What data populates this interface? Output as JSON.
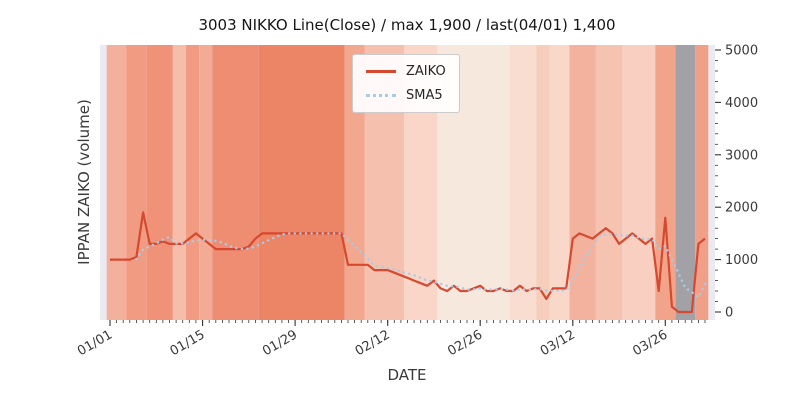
{
  "figure": {
    "title": "3003 NIKKO Line(Close) / max 1,900 / last(04/01) 1,400",
    "xlabel": "DATE",
    "ylabel": "IPPAN ZAIKO (volume)"
  },
  "legend": {
    "items": [
      {
        "label": "ZAIKO",
        "color": "#d6492f",
        "style": "solid"
      },
      {
        "label": "SMA5",
        "color": "#a9cbe8",
        "style": "dotted"
      }
    ]
  },
  "chart_data": {
    "type": "line",
    "title": "3003 NIKKO Line(Close) / max 1,900 / last(04/01) 1,400",
    "xlabel": "DATE",
    "ylabel": "IPPAN ZAIKO (volume)",
    "ylim": [
      0,
      5000
    ],
    "yticks": [
      0,
      1000,
      2000,
      3000,
      4000,
      5000
    ],
    "xtick_labels": [
      "01/01",
      "01/15",
      "01/29",
      "02/12",
      "02/26",
      "03/12",
      "03/26"
    ],
    "legend_position": "upper center",
    "grid": false,
    "plot_bg": "#eaeaf0",
    "dates": [
      "01/01",
      "01/02",
      "01/03",
      "01/04",
      "01/05",
      "01/06",
      "01/07",
      "01/08",
      "01/09",
      "01/10",
      "01/11",
      "01/12",
      "01/13",
      "01/14",
      "01/15",
      "01/16",
      "01/17",
      "01/18",
      "01/19",
      "01/20",
      "01/21",
      "01/22",
      "01/23",
      "01/24",
      "01/25",
      "01/26",
      "01/27",
      "01/28",
      "01/29",
      "01/30",
      "01/31",
      "02/01",
      "02/02",
      "02/03",
      "02/04",
      "02/05",
      "02/06",
      "02/07",
      "02/08",
      "02/09",
      "02/10",
      "02/11",
      "02/12",
      "02/13",
      "02/14",
      "02/15",
      "02/16",
      "02/17",
      "02/18",
      "02/19",
      "02/20",
      "02/21",
      "02/22",
      "02/23",
      "02/24",
      "02/25",
      "02/26",
      "02/27",
      "02/28",
      "03/01",
      "03/02",
      "03/03",
      "03/04",
      "03/05",
      "03/06",
      "03/07",
      "03/08",
      "03/09",
      "03/10",
      "03/11",
      "03/12",
      "03/13",
      "03/14",
      "03/15",
      "03/16",
      "03/17",
      "03/18",
      "03/19",
      "03/20",
      "03/21",
      "03/22",
      "03/23",
      "03/24",
      "03/25",
      "03/26",
      "03/27",
      "03/28",
      "03/29",
      "03/30",
      "03/31",
      "04/01"
    ],
    "series": [
      {
        "name": "ZAIKO",
        "color": "#d6492f",
        "style": "solid",
        "values": [
          1000,
          1000,
          1000,
          1000,
          1050,
          1900,
          1300,
          1300,
          1350,
          1300,
          1300,
          1300,
          1400,
          1500,
          1400,
          1300,
          1200,
          1200,
          1200,
          1200,
          1200,
          1250,
          1400,
          1500,
          1500,
          1500,
          1500,
          1500,
          1500,
          1500,
          1500,
          1500,
          1500,
          1500,
          1500,
          1500,
          900,
          900,
          900,
          900,
          800,
          800,
          800,
          750,
          700,
          650,
          600,
          550,
          500,
          600,
          450,
          400,
          500,
          400,
          400,
          450,
          500,
          400,
          400,
          450,
          400,
          400,
          500,
          400,
          450,
          450,
          250,
          450,
          450,
          450,
          1400,
          1500,
          1450,
          1400,
          1500,
          1600,
          1500,
          1300,
          1400,
          1500,
          1400,
          1300,
          1400,
          400,
          1800,
          100,
          0,
          0,
          0,
          1300,
          1400
        ]
      },
      {
        "name": "SMA5",
        "color": "#a9cbe8",
        "style": "dotted",
        "derived": "5-day simple moving average of ZAIKO",
        "window": 5
      }
    ],
    "background_bands": [
      {
        "from": "01/01",
        "to": "01/03",
        "color": "#f3b09c"
      },
      {
        "from": "01/04",
        "to": "01/06",
        "color": "#f09b82"
      },
      {
        "from": "01/07",
        "to": "01/10",
        "color": "#ef9278"
      },
      {
        "from": "01/11",
        "to": "01/12",
        "color": "#f6bdab"
      },
      {
        "from": "01/13",
        "to": "01/14",
        "color": "#f09b82"
      },
      {
        "from": "01/15",
        "to": "01/16",
        "color": "#f3ab95"
      },
      {
        "from": "01/17",
        "to": "01/23",
        "color": "#ee8d72"
      },
      {
        "from": "01/24",
        "to": "02/05",
        "color": "#ec8466"
      },
      {
        "from": "02/06",
        "to": "02/08",
        "color": "#f2a78f"
      },
      {
        "from": "02/09",
        "to": "02/14",
        "color": "#f6c0ae"
      },
      {
        "from": "02/15",
        "to": "02/19",
        "color": "#f9d6c7"
      },
      {
        "from": "02/20",
        "to": "03/02",
        "color": "#f7e8de"
      },
      {
        "from": "03/03",
        "to": "03/06",
        "color": "#f9ddd0"
      },
      {
        "from": "03/07",
        "to": "03/08",
        "color": "#f7cdbb"
      },
      {
        "from": "03/09",
        "to": "03/11",
        "color": "#f9d8c9"
      },
      {
        "from": "03/12",
        "to": "03/15",
        "color": "#f3b29d"
      },
      {
        "from": "03/16",
        "to": "03/19",
        "color": "#f6c3b1"
      },
      {
        "from": "03/20",
        "to": "03/24",
        "color": "#f8cfc0"
      },
      {
        "from": "03/25",
        "to": "03/27",
        "color": "#f2a48b"
      },
      {
        "from": "03/28",
        "to": "03/30",
        "color": "#a2a2a6"
      },
      {
        "from": "03/31",
        "to": "04/01",
        "color": "#f0a088"
      }
    ]
  }
}
